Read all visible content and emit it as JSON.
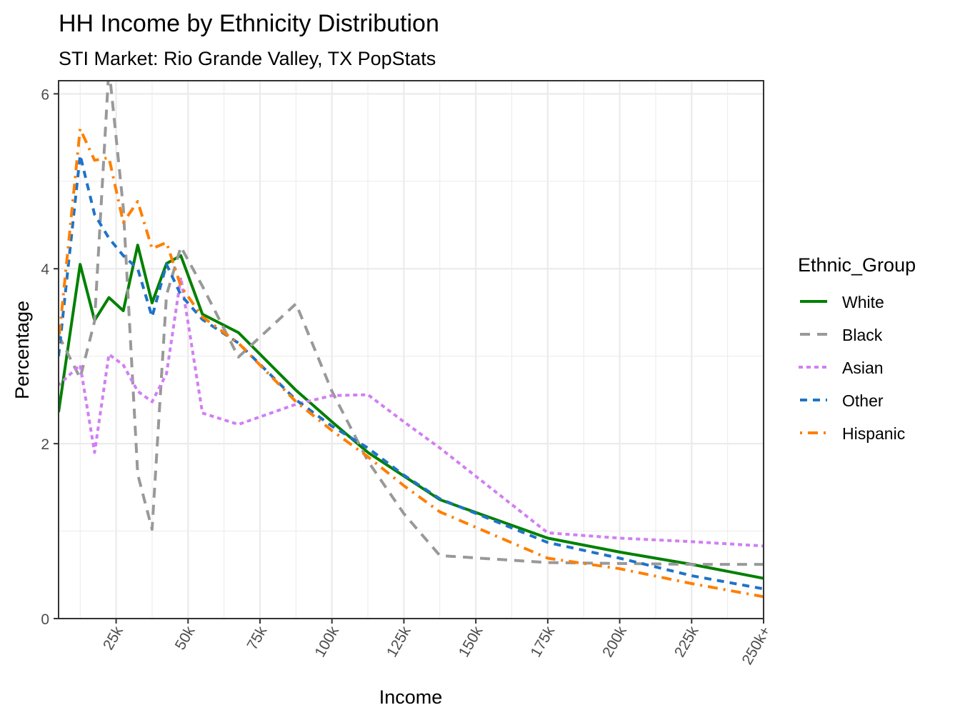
{
  "chart_data": {
    "type": "line",
    "title": "HH Income by Ethnicity Distribution",
    "subtitle": "STI Market: Rio Grande Valley, TX PopStats",
    "xlabel": "Income",
    "ylabel": "Percentage",
    "x_units": "thousands of dollars",
    "xlim": [
      5,
      250
    ],
    "ylim": [
      0,
      6.15
    ],
    "grid": true,
    "x_ticks": [
      {
        "value": 25,
        "label": "25k"
      },
      {
        "value": 50,
        "label": "50k"
      },
      {
        "value": 75,
        "label": "75k"
      },
      {
        "value": 100,
        "label": "100k"
      },
      {
        "value": 125,
        "label": "125k"
      },
      {
        "value": 150,
        "label": "150k"
      },
      {
        "value": 175,
        "label": "175k"
      },
      {
        "value": 200,
        "label": "200k"
      },
      {
        "value": 225,
        "label": "225k"
      },
      {
        "value": 250,
        "label": "250k+"
      }
    ],
    "y_ticks": [
      {
        "value": 0,
        "label": "0"
      },
      {
        "value": 2,
        "label": "2"
      },
      {
        "value": 4,
        "label": "4"
      },
      {
        "value": 6,
        "label": "6"
      }
    ],
    "legend": {
      "title": "Ethnic_Group",
      "position": "right"
    },
    "x": [
      5,
      12.5,
      17.5,
      22.5,
      27.5,
      32.5,
      37.5,
      42.5,
      47.5,
      55,
      67.5,
      87.5,
      100,
      112.5,
      125,
      137.5,
      175,
      200,
      225,
      250
    ],
    "series": [
      {
        "name": "White",
        "color": "#008000",
        "dash": "solid",
        "values": [
          2.36,
          4.05,
          3.41,
          3.67,
          3.52,
          4.27,
          3.61,
          4.06,
          4.15,
          3.48,
          3.27,
          2.61,
          2.25,
          1.9,
          1.63,
          1.36,
          0.92,
          0.76,
          0.62,
          0.46
        ]
      },
      {
        "name": "Black",
        "color": "#999999",
        "dash": "longdash",
        "values": [
          3.24,
          2.75,
          3.4,
          6.3,
          4.7,
          1.65,
          1.02,
          3.7,
          4.25,
          3.8,
          2.99,
          3.6,
          2.6,
          1.8,
          1.2,
          0.72,
          0.64,
          0.63,
          0.62,
          0.62
        ]
      },
      {
        "name": "Asian",
        "color": "#D17FF2",
        "dash": "dotted",
        "values": [
          2.67,
          2.9,
          1.9,
          3.02,
          2.9,
          2.6,
          2.48,
          2.8,
          3.9,
          2.35,
          2.22,
          2.45,
          2.55,
          2.56,
          2.25,
          1.95,
          0.98,
          0.92,
          0.88,
          0.83
        ]
      },
      {
        "name": "Other",
        "color": "#1F73C8",
        "dash": "dashed",
        "values": [
          3.0,
          5.3,
          4.62,
          4.35,
          4.15,
          4.0,
          3.45,
          4.05,
          3.7,
          3.42,
          3.15,
          2.5,
          2.2,
          1.95,
          1.64,
          1.37,
          0.87,
          0.69,
          0.49,
          0.34
        ]
      },
      {
        "name": "Hispanic",
        "color": "#FF7F00",
        "dash": "dotdash",
        "values": [
          3.16,
          5.6,
          5.24,
          5.27,
          4.53,
          4.77,
          4.23,
          4.3,
          3.8,
          3.45,
          3.15,
          2.48,
          2.15,
          1.85,
          1.52,
          1.22,
          0.69,
          0.57,
          0.4,
          0.25
        ]
      }
    ]
  }
}
